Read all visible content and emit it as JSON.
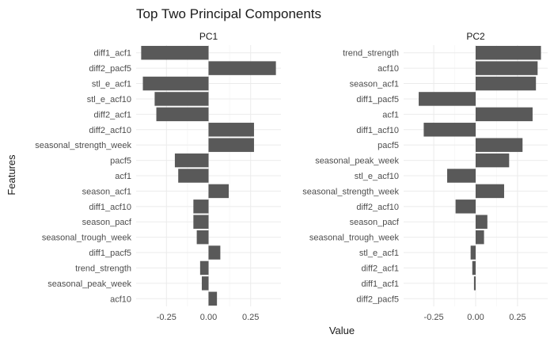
{
  "chart_data": {
    "type": "bar",
    "orientation": "horizontal",
    "title": "Top Two Principal Components",
    "xlabel": "Value",
    "ylabel": "Features",
    "bar_color": "#595959",
    "grid": true,
    "legend": "none",
    "x_ticks": [
      -0.25,
      0.0,
      0.25
    ],
    "x_tick_labels": [
      "-0.25",
      "0.00",
      "0.25"
    ],
    "xlim": [
      -0.43,
      0.43
    ],
    "panels": [
      {
        "name": "PC1",
        "categories": [
          "diff1_acf1",
          "diff2_pacf5",
          "stl_e_acf1",
          "stl_e_acf10",
          "diff2_acf1",
          "diff2_acf10",
          "seasonal_strength_week",
          "pacf5",
          "acf1",
          "season_acf1",
          "diff1_acf10",
          "season_pacf",
          "seasonal_trough_week",
          "diff1_pacf5",
          "trend_strength",
          "seasonal_peak_week",
          "acf10"
        ],
        "values": [
          -0.4,
          0.4,
          -0.39,
          -0.32,
          -0.31,
          0.27,
          0.27,
          -0.2,
          -0.18,
          0.12,
          -0.09,
          -0.09,
          -0.07,
          0.07,
          -0.05,
          -0.04,
          0.05
        ]
      },
      {
        "name": "PC2",
        "categories": [
          "trend_strength",
          "acf10",
          "season_acf1",
          "diff1_pacf5",
          "acf1",
          "diff1_acf10",
          "pacf5",
          "seasonal_peak_week",
          "stl_e_acf10",
          "seasonal_strength_week",
          "diff2_acf10",
          "season_pacf",
          "seasonal_trough_week",
          "stl_e_acf1",
          "diff2_acf1",
          "diff1_acf1",
          "diff2_pacf5"
        ],
        "values": [
          0.39,
          0.37,
          0.36,
          -0.34,
          0.34,
          -0.31,
          0.28,
          0.2,
          -0.17,
          0.17,
          -0.12,
          0.07,
          0.05,
          -0.03,
          -0.02,
          -0.01,
          0.0
        ]
      }
    ]
  }
}
